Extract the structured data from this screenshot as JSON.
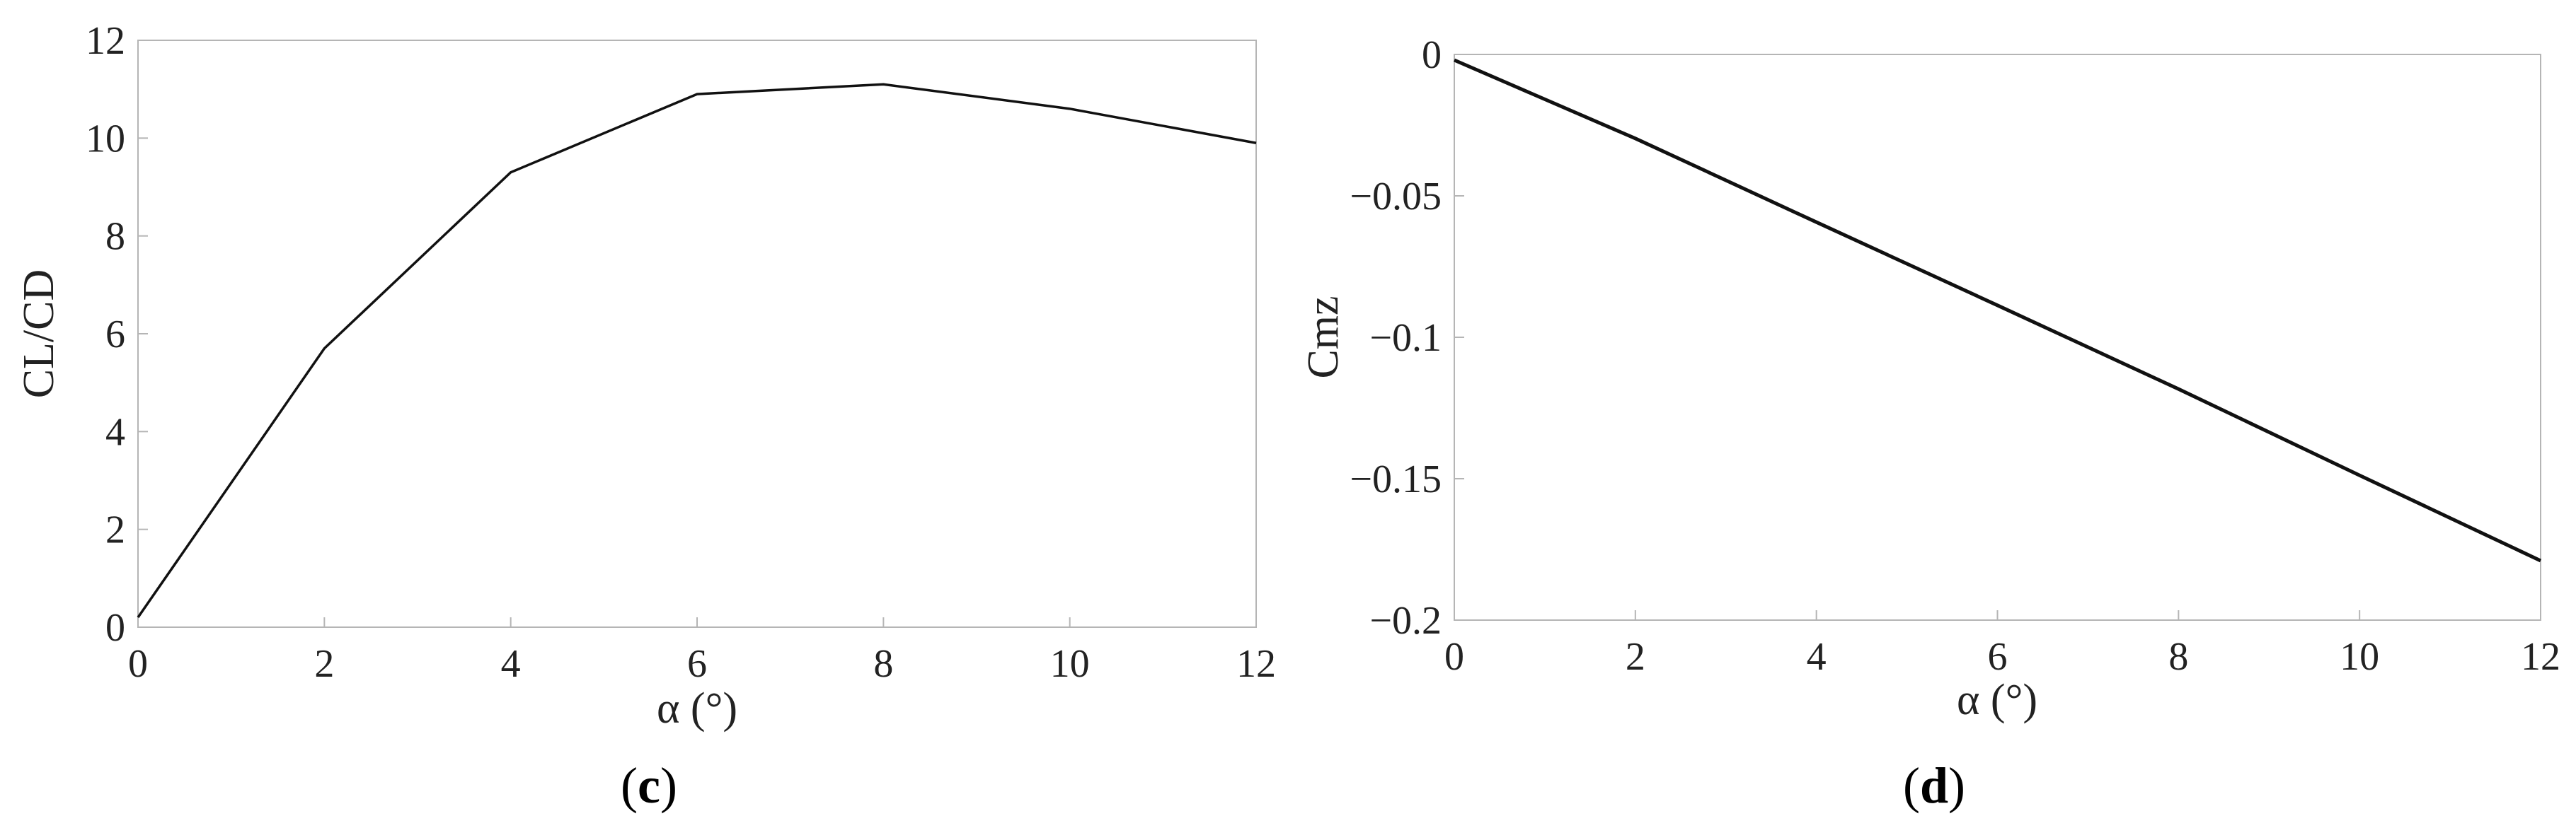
{
  "chart_data": [
    {
      "type": "line",
      "panel_label": "c",
      "xlabel": "α (°)",
      "ylabel": "CL/CD",
      "x": [
        0,
        2,
        4,
        6,
        8,
        10,
        12
      ],
      "series": [
        {
          "values": [
            0.2,
            5.7,
            9.3,
            10.9,
            11.1,
            10.6,
            9.9
          ]
        }
      ],
      "xlim": [
        0,
        12
      ],
      "ylim": [
        0,
        12
      ],
      "xticks": [
        "0",
        "2",
        "4",
        "6",
        "8",
        "10",
        "12"
      ],
      "yticks": [
        "0",
        "2",
        "4",
        "6",
        "8",
        "10",
        "12"
      ],
      "grid": false,
      "line_color": "#111111"
    },
    {
      "type": "line",
      "panel_label": "d",
      "xlabel": "α (°)",
      "ylabel": "Cmz",
      "x": [
        0,
        2,
        4,
        6,
        8,
        10,
        12
      ],
      "series": [
        {
          "values": [
            -0.002,
            -0.0297,
            -0.0593,
            -0.0887,
            -0.1183,
            -0.1488,
            -0.179
          ]
        }
      ],
      "xlim": [
        0,
        12
      ],
      "ylim": [
        -0.2,
        0
      ],
      "xticks": [
        "0",
        "2",
        "4",
        "6",
        "8",
        "10",
        "12"
      ],
      "yticks": [
        "−0.2",
        "−0.15",
        "−0.1",
        "−0.05",
        "0"
      ],
      "grid": false,
      "line_color": "#111111"
    }
  ],
  "captions": {
    "c": "c",
    "d": "d"
  }
}
